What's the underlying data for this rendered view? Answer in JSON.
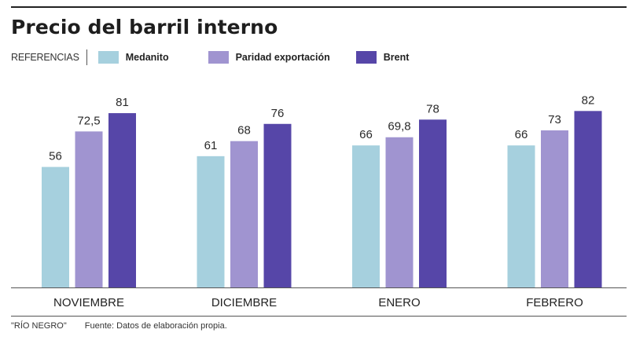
{
  "title": "Precio del barril interno",
  "legend": {
    "label": "REFERENCIAS",
    "items": [
      {
        "name": "Medanito",
        "color": "#a6d0de"
      },
      {
        "name": "Paridad exportación",
        "color": "#a094d0"
      },
      {
        "name": "Brent",
        "color": "#5646a8"
      }
    ]
  },
  "footer": {
    "credit": "\"RÍO NEGRO\"",
    "source": "Fuente: Datos de elaboración propia."
  },
  "chart_data": {
    "type": "bar",
    "title": "Precio del barril interno",
    "xlabel": "",
    "ylabel": "",
    "ylim": [
      0,
      82
    ],
    "grid": false,
    "legend_position": "top-left",
    "categories": [
      "NOVIEMBRE",
      "DICIEMBRE",
      "ENERO",
      "FEBRERO"
    ],
    "series": [
      {
        "name": "Medanito",
        "color": "#a6d0de",
        "values": [
          56,
          61,
          66,
          66
        ],
        "labels": [
          "56",
          "61",
          "66",
          "66"
        ]
      },
      {
        "name": "Paridad exportación",
        "color": "#a094d0",
        "values": [
          72.5,
          68,
          69.8,
          73
        ],
        "labels": [
          "72,5",
          "68",
          "69,8",
          "73"
        ]
      },
      {
        "name": "Brent",
        "color": "#5646a8",
        "values": [
          81,
          76,
          78,
          82
        ],
        "labels": [
          "81",
          "76",
          "78",
          "82"
        ]
      }
    ]
  }
}
